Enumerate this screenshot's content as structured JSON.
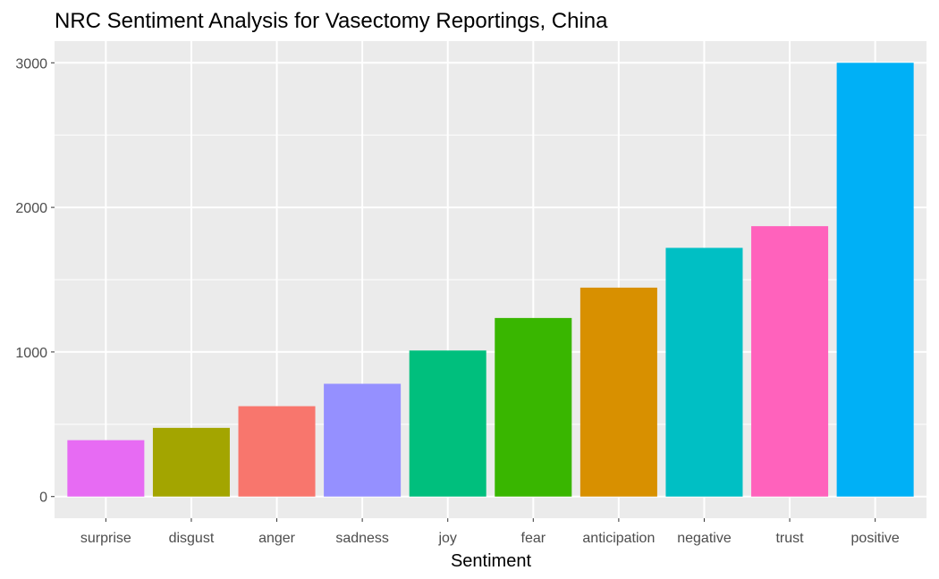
{
  "chart_data": {
    "type": "bar",
    "title": "NRC Sentiment Analysis for Vasectomy Reportings, China",
    "xlabel": "Sentiment",
    "ylabel": "",
    "categories": [
      "surprise",
      "disgust",
      "anger",
      "sadness",
      "joy",
      "fear",
      "anticipation",
      "negative",
      "trust",
      "positive"
    ],
    "values": [
      390,
      475,
      625,
      780,
      1010,
      1235,
      1445,
      1720,
      1870,
      3000
    ],
    "colors": [
      "#E76BF3",
      "#A3A500",
      "#F8766D",
      "#9590FF",
      "#00BF7D",
      "#39B600",
      "#D89000",
      "#00BFC4",
      "#FF62BC",
      "#00B0F6"
    ],
    "y_ticks": [
      0,
      1000,
      2000,
      3000
    ],
    "y_tick_labels": [
      "0",
      "1000",
      "2000",
      "3000"
    ],
    "ylim": [
      -150,
      3150
    ],
    "panel_background": "#EBEBEB",
    "grid_color": "#FFFFFF",
    "grid": true,
    "legend": "none"
  }
}
